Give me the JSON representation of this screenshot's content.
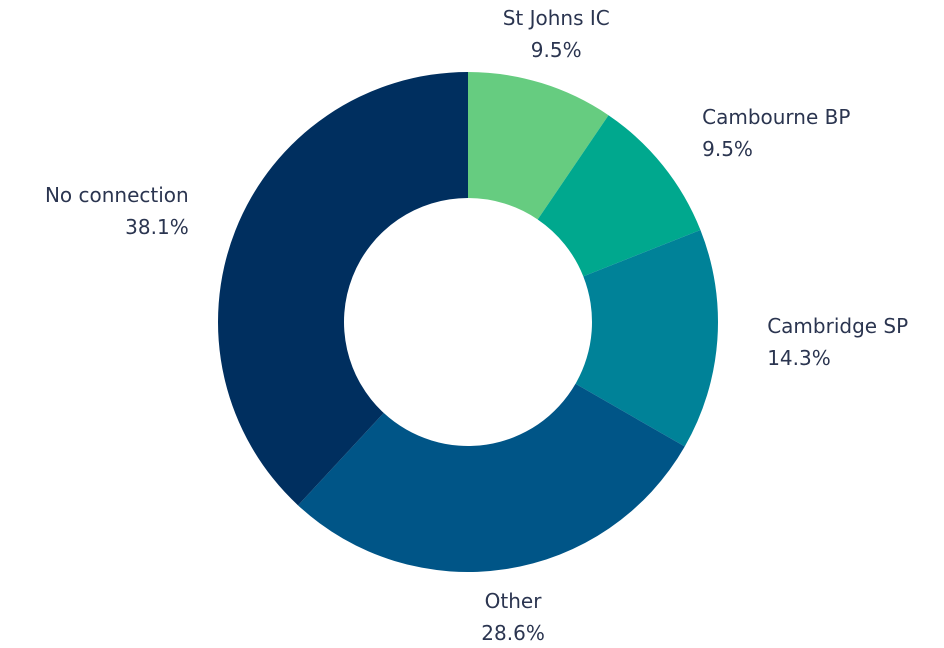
{
  "chart_data": {
    "type": "donut",
    "categories": [
      "St Johns IC",
      "Cambourne BP",
      "Cambridge SP",
      "Other",
      "No connection"
    ],
    "values": [
      9.5,
      9.5,
      14.3,
      28.6,
      38.1
    ],
    "value_labels": [
      "9.5%",
      "9.5%",
      "14.3%",
      "28.6%",
      "38.1%"
    ],
    "colors": [
      "#66cc80",
      "#00a88e",
      "#008298",
      "#005587",
      "#002f5f"
    ]
  }
}
